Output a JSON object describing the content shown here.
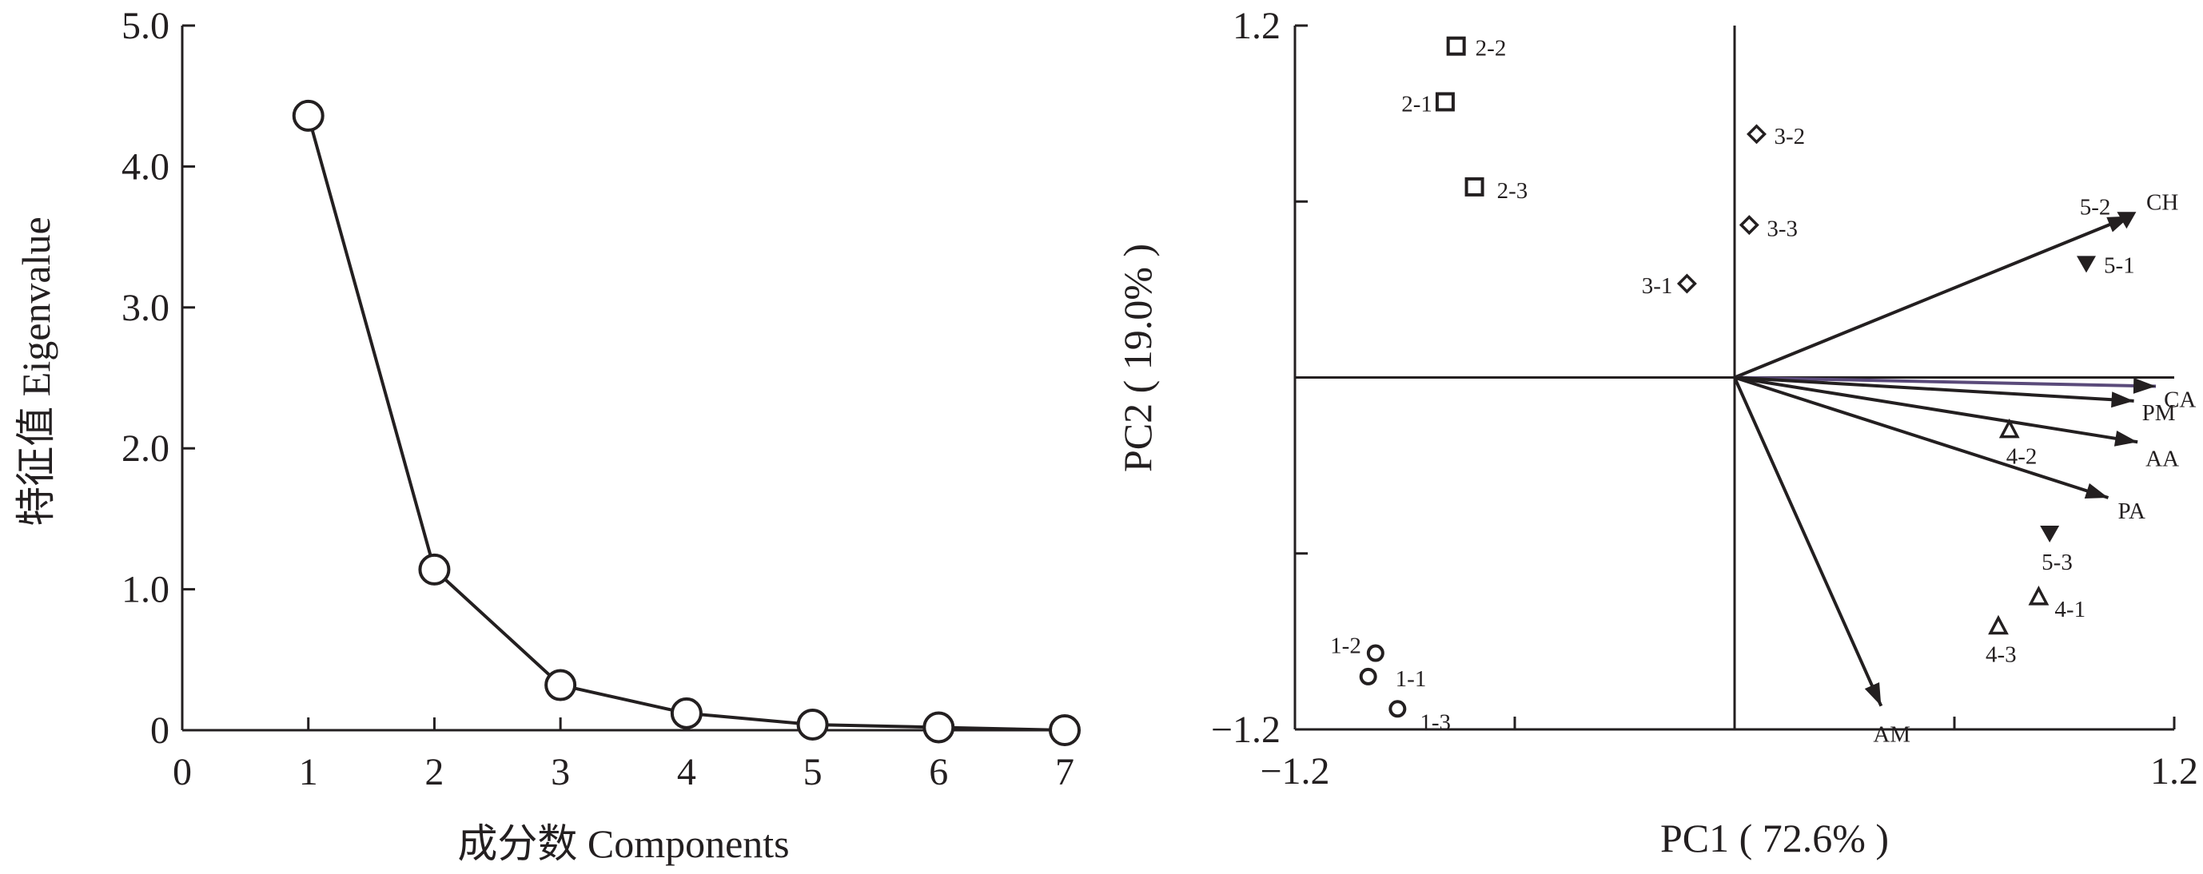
{
  "colors": {
    "ink": "#231f20",
    "ca_arrow": "#5a4a7a",
    "background": "#ffffff"
  },
  "chart_data": [
    {
      "type": "line",
      "title": "",
      "xlabel": "成分数 Components",
      "ylabel": "特征值 Eigenvalue",
      "x": [
        1,
        2,
        3,
        4,
        5,
        6,
        7
      ],
      "values": [
        4.36,
        1.14,
        0.32,
        0.12,
        0.04,
        0.02,
        0.0
      ],
      "xlim": [
        0,
        7
      ],
      "ylim": [
        0,
        5
      ],
      "x_ticks": [
        "0",
        "1",
        "2",
        "3",
        "4",
        "5",
        "6",
        "7"
      ],
      "y_ticks": [
        "0",
        "1.0",
        "2.0",
        "3.0",
        "4.0",
        "5.0"
      ],
      "marker": "open-circle",
      "grid": false
    },
    {
      "type": "scatter",
      "subtype": "biplot",
      "title": "",
      "xlabel": "PC1 ( 72.6% )",
      "ylabel": "PC2 ( 19.0% )",
      "xlim": [
        -1.2,
        1.2
      ],
      "ylim": [
        -1.2,
        1.2
      ],
      "x_tick_labels": [
        {
          "value": -1.2,
          "label": "−1.2"
        },
        {
          "value": 1.2,
          "label": "1.2"
        }
      ],
      "y_tick_labels": [
        {
          "value": 1.2,
          "label": "1.2"
        },
        {
          "value": -1.2,
          "label": "−1.2"
        }
      ],
      "x_minor_ticks": [
        -0.6,
        0.6
      ],
      "y_minor_ticks": [
        0.6,
        -0.6
      ],
      "grid": false,
      "groups": [
        {
          "marker": "circle",
          "points": [
            {
              "label": "1-1",
              "x": -1.0,
              "y": -1.02
            },
            {
              "label": "1-2",
              "x": -0.98,
              "y": -0.94
            },
            {
              "label": "1-3",
              "x": -0.92,
              "y": -1.13
            }
          ]
        },
        {
          "marker": "square",
          "points": [
            {
              "label": "2-1",
              "x": -0.79,
              "y": 0.94
            },
            {
              "label": "2-2",
              "x": -0.76,
              "y": 1.13
            },
            {
              "label": "2-3",
              "x": -0.71,
              "y": 0.65
            }
          ]
        },
        {
          "marker": "diamond",
          "points": [
            {
              "label": "3-1",
              "x": -0.13,
              "y": 0.32
            },
            {
              "label": "3-2",
              "x": 0.06,
              "y": 0.83
            },
            {
              "label": "3-3",
              "x": 0.04,
              "y": 0.52
            }
          ]
        },
        {
          "marker": "triangle-up",
          "points": [
            {
              "label": "4-1",
              "x": 0.83,
              "y": -0.75
            },
            {
              "label": "4-2",
              "x": 0.75,
              "y": -0.18
            },
            {
              "label": "4-3",
              "x": 0.72,
              "y": -0.85
            }
          ]
        },
        {
          "marker": "triangle-down",
          "points": [
            {
              "label": "5-1",
              "x": 0.96,
              "y": 0.39
            },
            {
              "label": "5-2",
              "x": 1.07,
              "y": 0.54
            },
            {
              "label": "5-3",
              "x": 0.86,
              "y": -0.53
            }
          ]
        }
      ],
      "loadings": [
        {
          "name": "CH",
          "x": 1.08,
          "y": 0.55
        },
        {
          "name": "CA",
          "x": 1.15,
          "y": -0.03
        },
        {
          "name": "PM",
          "x": 1.09,
          "y": -0.08
        },
        {
          "name": "AA",
          "x": 1.1,
          "y": -0.22
        },
        {
          "name": "PA",
          "x": 1.02,
          "y": -0.41
        },
        {
          "name": "AM",
          "x": 0.4,
          "y": -1.12
        }
      ]
    }
  ]
}
